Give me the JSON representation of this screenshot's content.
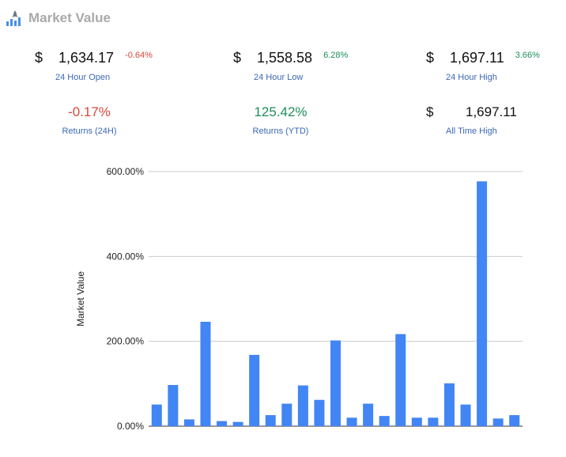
{
  "header": {
    "title": "Market Value",
    "logo_icon": "bar-chart-rocket-icon"
  },
  "stats": [
    {
      "id": "open",
      "prefix": "$",
      "value": "1,634.17",
      "change": "-0.64%",
      "change_color": "#d9473b",
      "label": "24 Hour Open"
    },
    {
      "id": "low",
      "prefix": "$",
      "value": "1,558.58",
      "change": "6.28%",
      "change_color": "#1e8e5a",
      "label": "24 Hour Low"
    },
    {
      "id": "high",
      "prefix": "$",
      "value": "1,697.11",
      "change": "3.66%",
      "change_color": "#1e8e5a",
      "label": "24 Hour High"
    },
    {
      "id": "returns24",
      "prefix": "",
      "value": "-0.17%",
      "value_color": "#d9473b",
      "label": "Returns (24H)"
    },
    {
      "id": "returnsytd",
      "prefix": "",
      "value": "125.42%",
      "value_color": "#1e8e5a",
      "label": "Returns (YTD)"
    },
    {
      "id": "ath",
      "prefix": "$",
      "value": "1,697.11",
      "label": "All Time High"
    }
  ],
  "chart_data": {
    "type": "bar",
    "ylabel": "Market Value",
    "xlabel": "",
    "ylim": [
      0,
      600
    ],
    "yticks": [
      "0.00%",
      "200.00%",
      "400.00%",
      "600.00%"
    ],
    "ytick_values": [
      0,
      200,
      400,
      600
    ],
    "grid": true,
    "bar_color": "#4285f4",
    "values": [
      51,
      97,
      16,
      246,
      12,
      10,
      168,
      26,
      53,
      96,
      62,
      202,
      20,
      53,
      24,
      217,
      20,
      20,
      101,
      51,
      577,
      18,
      26
    ]
  }
}
